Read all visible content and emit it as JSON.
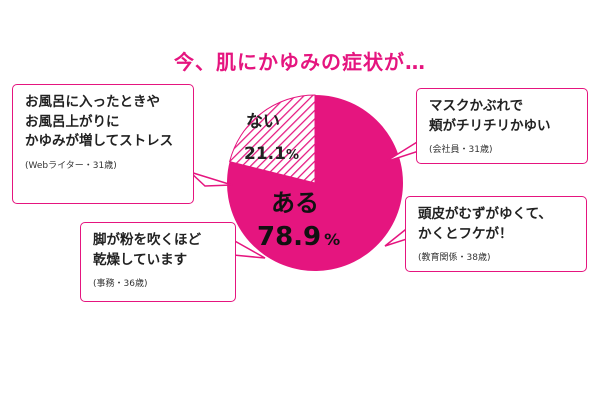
{
  "title": "今、肌にかゆみの症状が…",
  "chart_data": {
    "type": "pie",
    "categories": [
      "ある",
      "ない"
    ],
    "values": [
      78.9,
      21.1
    ],
    "value_labels": [
      "78.9",
      "21.1"
    ],
    "unit": "%",
    "colors": [
      "#e5157f",
      "#e5157f"
    ],
    "hatched": [
      false,
      true
    ]
  },
  "bubbles": [
    {
      "quote_lines": [
        "お風呂に入ったときや",
        "お風呂上がりに",
        "かゆみが増してストレス"
      ],
      "attribution": "(Webライター・31歳)"
    },
    {
      "quote_lines": [
        "マスクかぶれで",
        "頬がチリチリかゆい"
      ],
      "attribution": "(会社員・31歳)"
    },
    {
      "quote_lines": [
        "頭皮がむずがゆくて、",
        "かくとフケが！"
      ],
      "attribution": "(教育関係・38歳)"
    },
    {
      "quote_lines": [
        "脚が粉を吹くほど",
        "乾燥しています"
      ],
      "attribution": "(事務・36歳)"
    }
  ]
}
